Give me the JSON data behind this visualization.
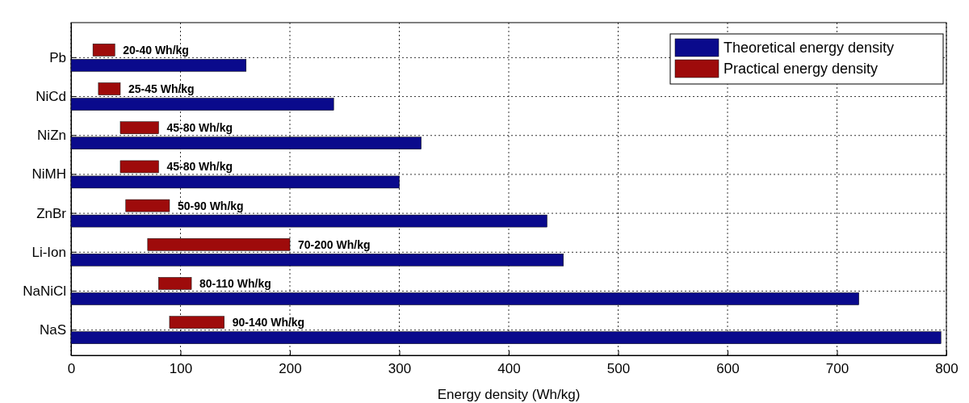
{
  "chart_data": {
    "type": "bar",
    "orientation": "horizontal",
    "categories": [
      "Pb",
      "NiCd",
      "NiZn",
      "NiMH",
      "ZnBr",
      "Li-Ion",
      "NaNiCl",
      "NaS"
    ],
    "xlabel": "Energy density (Wh/kg)",
    "xlim": [
      0,
      800
    ],
    "xticks": [
      0,
      100,
      200,
      300,
      400,
      500,
      600,
      700,
      800
    ],
    "grid": true,
    "legend": "top right",
    "series": [
      {
        "name": "Theoretical energy density",
        "color": "#0a0a8c",
        "values": [
          160,
          240,
          320,
          300,
          435,
          450,
          720,
          795
        ]
      },
      {
        "name": "Practical energy density",
        "color": "#9e0b0b",
        "base": [
          20,
          25,
          45,
          45,
          50,
          70,
          80,
          90
        ],
        "values": [
          20,
          20,
          35,
          35,
          40,
          130,
          30,
          50
        ],
        "value_labels": [
          "20-40 Wh/kg",
          "25-45 Wh/kg",
          "45-80 Wh/kg",
          "45-80 Wh/kg",
          "50-90 Wh/kg",
          "70-200 Wh/kg",
          "80-110 Wh/kg",
          "90-140 Wh/kg"
        ]
      }
    ]
  }
}
